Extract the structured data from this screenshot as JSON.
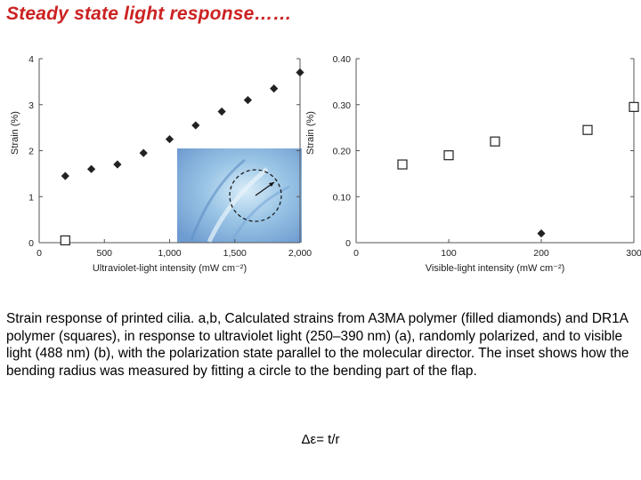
{
  "title": "Steady state light response……",
  "caption": "Strain response of printed cilia. a,b, Calculated strains from A3MA polymer (filled diamonds) and DR1A polymer (squares), in response to ultraviolet light (250–390 nm) (a), randomly polarized, and to visible light (488 nm) (b), with the polarization state parallel to the molecular director. The inset shows how the bending radius was measured by fitting a circle to the bending part of the flap.",
  "formula": "Δε= t/r",
  "colors": {
    "title": "#cc2222",
    "marker": "#222222",
    "inset_bg": "#8fb8e0"
  },
  "chart_data": [
    {
      "type": "scatter",
      "xlabel": "Ultraviolet-light intensity (mW cm⁻²)",
      "ylabel": "Strain (%)",
      "xlim": [
        0,
        2000
      ],
      "ylim": [
        0,
        4
      ],
      "xticks": [
        "0",
        "500",
        "1,000",
        "1,500",
        "2,000"
      ],
      "yticks": [
        "0",
        "1",
        "2",
        "3",
        "4"
      ],
      "series": [
        {
          "marker": "filled-diamond",
          "x": [
            200,
            400,
            600,
            800,
            1000,
            1200,
            1400,
            1600,
            1800,
            2000
          ],
          "y": [
            1.45,
            1.6,
            1.7,
            1.95,
            2.25,
            2.55,
            2.85,
            3.1,
            3.35,
            3.7
          ]
        },
        {
          "marker": "open-square",
          "x": [
            200
          ],
          "y": [
            0.05
          ]
        }
      ]
    },
    {
      "type": "scatter",
      "xlabel": "Visible-light intensity (mW cm⁻²)",
      "ylabel": "Strain (%)",
      "xlim": [
        0,
        300
      ],
      "ylim": [
        0,
        0.4
      ],
      "xticks": [
        "0",
        "100",
        "200",
        "300"
      ],
      "yticks": [
        "0",
        "0.10",
        "0.20",
        "0.30",
        "0.40"
      ],
      "series": [
        {
          "marker": "open-square",
          "x": [
            50,
            100,
            150,
            250,
            300
          ],
          "y": [
            0.17,
            0.19,
            0.22,
            0.245,
            0.295
          ]
        },
        {
          "marker": "filled-diamond",
          "x": [
            200
          ],
          "y": [
            0.02
          ]
        }
      ]
    }
  ]
}
